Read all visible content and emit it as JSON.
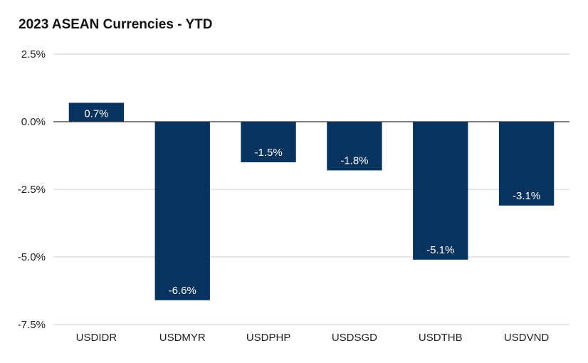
{
  "chart_data": {
    "type": "bar",
    "title": "2023 ASEAN Currencies - YTD",
    "categories": [
      "USDIDR",
      "USDMYR",
      "USDPHP",
      "USDSGD",
      "USDTHB",
      "USDVND"
    ],
    "values": [
      0.7,
      -6.6,
      -1.5,
      -1.8,
      -5.1,
      -3.1
    ],
    "data_labels": [
      "0.7%",
      "-6.6%",
      "-1.5%",
      "-1.8%",
      "-5.1%",
      "-3.1%"
    ],
    "y_ticks": [
      2.5,
      0.0,
      -2.5,
      -5.0,
      -7.5
    ],
    "y_tick_labels": [
      "2.5%",
      "0.0%",
      "-2.5%",
      "-5.0%",
      "-7.5%"
    ],
    "ylim": [
      -7.5,
      2.5
    ],
    "xlabel": "",
    "ylabel": "",
    "grid": true,
    "legend": "none",
    "colors": {
      "bar": "#08335f",
      "grid": "#cccccc",
      "zero_line": "#333333"
    }
  }
}
